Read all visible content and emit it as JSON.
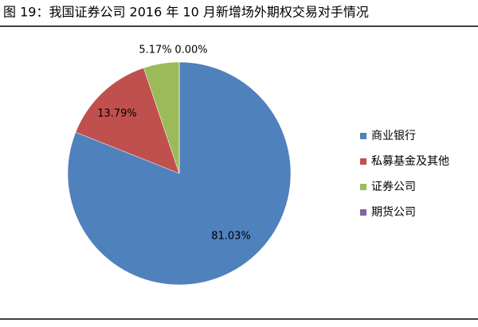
{
  "chart_data": {
    "type": "pie",
    "title": "图 19：我国证券公司 2016 年 10 月新增场外期权交易对手情况",
    "categories": [
      "商业银行",
      "私募基金及其他",
      "证券公司",
      "期货公司"
    ],
    "values": [
      81.03,
      13.79,
      5.17,
      0.0
    ],
    "value_labels": [
      "81.03%",
      "13.79%",
      "5.17%",
      "0.00%"
    ],
    "colors": [
      "#4f81bd",
      "#c0504d",
      "#9bbb59",
      "#8064a2"
    ],
    "legend": "right"
  }
}
